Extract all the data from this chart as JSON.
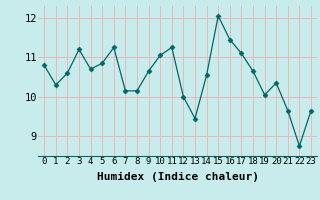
{
  "x": [
    0,
    1,
    2,
    3,
    4,
    5,
    6,
    7,
    8,
    9,
    10,
    11,
    12,
    13,
    14,
    15,
    16,
    17,
    18,
    19,
    20,
    21,
    22,
    23
  ],
  "y": [
    10.8,
    10.3,
    10.6,
    11.2,
    10.7,
    10.85,
    11.25,
    10.15,
    10.15,
    10.65,
    11.05,
    11.25,
    10.0,
    9.45,
    10.55,
    12.05,
    11.45,
    11.1,
    10.65,
    10.05,
    10.35,
    9.65,
    8.75,
    9.65
  ],
  "xlabel": "Humidex (Indice chaleur)",
  "ylim": [
    8.5,
    12.3
  ],
  "xlim": [
    -0.5,
    23.5
  ],
  "yticks": [
    9,
    10,
    11,
    12
  ],
  "xticks": [
    0,
    1,
    2,
    3,
    4,
    5,
    6,
    7,
    8,
    9,
    10,
    11,
    12,
    13,
    14,
    15,
    16,
    17,
    18,
    19,
    20,
    21,
    22,
    23
  ],
  "line_color": "#006666",
  "marker": "D",
  "marker_size": 2.5,
  "bg_color": "#c8ecec",
  "grid_color": "#e8b8b8",
  "tick_labelsize": 6.5,
  "xlabel_fontsize": 8,
  "xlabel_fontweight": "bold"
}
